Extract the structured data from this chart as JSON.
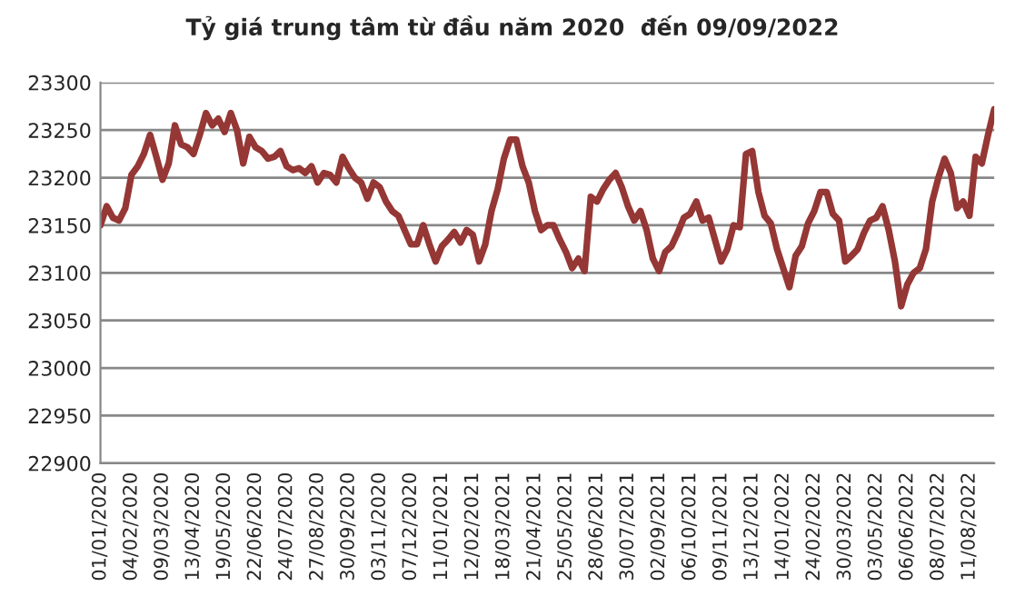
{
  "chart_data": {
    "type": "line",
    "title": "Tỷ giá trung tâm từ đầu năm 2020  đến 09/09/2022",
    "categories": [
      "01/01/2020",
      null,
      null,
      null,
      null,
      "04/02/2020",
      null,
      null,
      null,
      null,
      "09/03/2020",
      null,
      null,
      null,
      null,
      "13/04/2020",
      null,
      null,
      null,
      null,
      "19/05/2020",
      null,
      null,
      null,
      null,
      "22/06/2020",
      null,
      null,
      null,
      null,
      "24/07/2020",
      null,
      null,
      null,
      null,
      "27/08/2020",
      null,
      null,
      null,
      null,
      "30/09/2020",
      null,
      null,
      null,
      null,
      "03/11/2020",
      null,
      null,
      null,
      null,
      "07/12/2020",
      null,
      null,
      null,
      null,
      "11/01/2021",
      null,
      null,
      null,
      null,
      "12/02/2021",
      null,
      null,
      null,
      null,
      "18/03/2021",
      null,
      null,
      null,
      null,
      "21/04/2021",
      null,
      null,
      null,
      null,
      "25/05/2021",
      null,
      null,
      null,
      null,
      "28/06/2021",
      null,
      null,
      null,
      null,
      "30/07/2021",
      null,
      null,
      null,
      null,
      "02/09/2021",
      null,
      null,
      null,
      null,
      "06/10/2021",
      null,
      null,
      null,
      null,
      "09/11/2021",
      null,
      null,
      null,
      null,
      "13/12/2021",
      null,
      null,
      null,
      null,
      "14/01/2022",
      null,
      null,
      null,
      null,
      "24/02/2022",
      null,
      null,
      null,
      null,
      "30/03/2022",
      null,
      null,
      null,
      null,
      "03/05/2022",
      null,
      null,
      null,
      null,
      "06/06/2022",
      null,
      null,
      null,
      null,
      "08/07/2022",
      null,
      null,
      null,
      null,
      "11/08/2022",
      null,
      null,
      null,
      null
    ],
    "series": [
      {
        "color": "#953735",
        "values": [
          23150,
          23170,
          23158,
          23155,
          23168,
          23203,
          23212,
          23225,
          23245,
          23222,
          23198,
          23215,
          23255,
          23235,
          23232,
          23225,
          23245,
          23268,
          23255,
          23262,
          23248,
          23268,
          23250,
          23215,
          23243,
          23232,
          23228,
          23220,
          23222,
          23228,
          23212,
          23208,
          23210,
          23205,
          23212,
          23195,
          23205,
          23203,
          23195,
          23222,
          23210,
          23200,
          23195,
          23178,
          23195,
          23190,
          23175,
          23165,
          23160,
          23145,
          23130,
          23130,
          23150,
          23130,
          23112,
          23128,
          23135,
          23143,
          23132,
          23145,
          23140,
          23112,
          23130,
          23165,
          23188,
          23220,
          23240,
          23240,
          23212,
          23195,
          23165,
          23145,
          23150,
          23150,
          23135,
          23122,
          23105,
          23115,
          23102,
          23180,
          23175,
          23188,
          23198,
          23205,
          23190,
          23170,
          23155,
          23165,
          23145,
          23115,
          23102,
          23122,
          23128,
          23142,
          23158,
          23162,
          23175,
          23155,
          23158,
          23135,
          23112,
          23125,
          23150,
          23148,
          23225,
          23228,
          23185,
          23160,
          23152,
          23125,
          23105,
          23085,
          23118,
          23128,
          23152,
          23165,
          23185,
          23185,
          23162,
          23155,
          23112,
          23118,
          23125,
          23142,
          23155,
          23158,
          23170,
          23145,
          23112,
          23065,
          23088,
          23100,
          23105,
          23125,
          23175,
          23200,
          23220,
          23205,
          23168,
          23175,
          23160,
          23222,
          23215,
          23245,
          23272
        ]
      }
    ],
    "ylim": [
      22900,
      23300
    ],
    "yticks": [
      22900,
      22950,
      23000,
      23050,
      23100,
      23150,
      23200,
      23250,
      23300
    ],
    "grid": "y",
    "marker": "none",
    "line_style": "solid"
  }
}
